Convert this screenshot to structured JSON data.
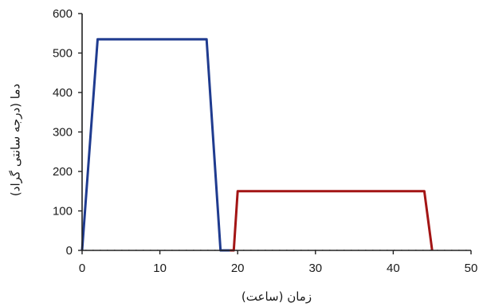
{
  "chart_data": {
    "type": "line",
    "title": "",
    "xlabel": "زمان (ساعت)",
    "ylabel": "دما (درجه سانتی گراد)",
    "xlim": [
      0,
      50
    ],
    "ylim": [
      0,
      600
    ],
    "xticks": [
      0,
      10,
      20,
      30,
      40,
      50
    ],
    "yticks": [
      0,
      100,
      200,
      300,
      400,
      500,
      600
    ],
    "grid": false,
    "legend": "none",
    "series": [
      {
        "color": "#1f3b8f",
        "points": [
          [
            0,
            0
          ],
          [
            2,
            535
          ],
          [
            16,
            535
          ],
          [
            17.8,
            0
          ],
          [
            19,
            0
          ]
        ]
      },
      {
        "color": "#a31515",
        "points": [
          [
            19,
            0
          ],
          [
            19.5,
            0
          ],
          [
            20,
            150
          ],
          [
            44,
            150
          ],
          [
            45,
            0
          ]
        ]
      }
    ]
  }
}
